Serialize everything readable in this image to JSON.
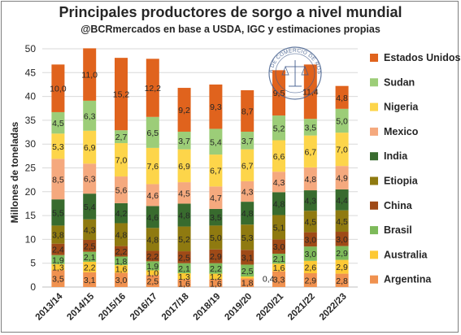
{
  "chart_data": {
    "type": "bar",
    "stacked": true,
    "title": "Principales productores de sorgo a nivel mundial",
    "subtitle": "@BCRmercados en base a USDA, IGC y estimaciones propias",
    "ylabel": "Millones de toneladas",
    "ylim": [
      0,
      50
    ],
    "yticks": [
      0,
      5,
      10,
      15,
      20,
      25,
      30,
      35,
      40,
      45,
      50
    ],
    "grid": "horizontal",
    "legend_position": "right",
    "categories": [
      "2013/14",
      "2014/15",
      "2015/16",
      "2016/17",
      "2017/18",
      "2018/19",
      "2019/20",
      "2020/21",
      "2021/22",
      "2022/23"
    ],
    "series": [
      {
        "name": "Argentina",
        "color": "#f0914f",
        "values": [
          3.5,
          3.1,
          3.0,
          2.5,
          1.6,
          1.6,
          1.8,
          3.3,
          2.9,
          2.8
        ],
        "labels": [
          "3,5",
          "3,1",
          "3,0",
          "2,5",
          "1,6",
          "1,6",
          "1,8",
          "3,3",
          "2,9",
          "2,8"
        ]
      },
      {
        "name": "Australia",
        "color": "#fdc934",
        "values": [
          1.3,
          2.2,
          1.6,
          1.0,
          1.3,
          1.2,
          0.4,
          1.6,
          2.6,
          2.9
        ],
        "labels": [
          "1,3",
          "2,2",
          "1,6",
          "1,0",
          "1,3",
          "1,2",
          "0,4",
          "1,6",
          "2,6",
          "2,9"
        ]
      },
      {
        "name": "Brasil",
        "color": "#7dba5a",
        "values": [
          1.9,
          2.1,
          1.8,
          1.9,
          2.1,
          2.2,
          2.5,
          2.1,
          3.0,
          2.9
        ],
        "labels": [
          "1,9",
          "2,1",
          "1,8",
          "1,9",
          "2,1",
          "2,2",
          "2,5",
          "2,1",
          "3,0",
          "2,9"
        ]
      },
      {
        "name": "China",
        "color": "#9f4a17",
        "values": [
          2.4,
          2.5,
          2.2,
          2.2,
          2.5,
          2.9,
          3.1,
          3.0,
          3.0,
          3.0
        ],
        "labels": [
          "2,4",
          "2,5",
          "2,2",
          "2,2",
          "2,5",
          "2,9",
          "3,1",
          "3,0",
          "3,0",
          "3,0"
        ]
      },
      {
        "name": "Etiopia",
        "color": "#8f7a10",
        "values": [
          3.8,
          4.3,
          4.8,
          4.8,
          5.2,
          5.0,
          5.3,
          5.1,
          4.5,
          4.5
        ],
        "labels": [
          "3,8",
          "4,3",
          "4,8",
          "4,8",
          "5,2",
          "5,0",
          "5,3",
          "5,1",
          "4,5",
          "4,5"
        ]
      },
      {
        "name": "India",
        "color": "#386b2e",
        "values": [
          5.5,
          5.4,
          4.2,
          4.6,
          4.8,
          3.5,
          4.8,
          4.8,
          4.3,
          4.4
        ],
        "labels": [
          "5,5",
          "5,4",
          "4,2",
          "4,6",
          "4,8",
          "3,5",
          "4,8",
          "4,8",
          "4,3",
          "4,4"
        ]
      },
      {
        "name": "Mexico",
        "color": "#f5a97e",
        "values": [
          8.5,
          6.3,
          5.6,
          4.6,
          4.5,
          4.7,
          4.3,
          4.3,
          4.8,
          4.9
        ],
        "labels": [
          "8,5",
          "6,3",
          "5,6",
          "4,6",
          "4,5",
          "4,7",
          "4,3",
          "4,3",
          "4,8",
          "4,9"
        ]
      },
      {
        "name": "Nigeria",
        "color": "#fdd54a",
        "values": [
          5.3,
          6.9,
          7.0,
          7.6,
          6.9,
          6.7,
          6.7,
          6.6,
          6.7,
          7.0
        ],
        "labels": [
          "5,3",
          "6,9",
          "7,0",
          "7,6",
          "6,9",
          "6,7",
          "6,7",
          "6,6",
          "6,7",
          "7,0"
        ]
      },
      {
        "name": "Sudan",
        "color": "#9ccd78",
        "values": [
          4.5,
          6.3,
          2.7,
          6.5,
          3.7,
          5.4,
          3.7,
          5.2,
          3.5,
          5.0
        ],
        "labels": [
          "4,5",
          "6,3",
          "2,7",
          "6,5",
          "3,7",
          "5,4",
          "3,7",
          "5,2",
          "3,5",
          "5,0"
        ]
      },
      {
        "name": "Estados Unidos",
        "color": "#e0631d",
        "values": [
          10.0,
          11.0,
          15.2,
          12.2,
          9.2,
          9.3,
          8.7,
          9.5,
          11.4,
          4.8
        ],
        "labels": [
          "10,0",
          "11,0",
          "15,2",
          "12,2",
          "9,2",
          "9,3",
          "8,7",
          "9,5",
          "11,4",
          "4,8"
        ]
      }
    ],
    "legend_order": [
      "Estados Unidos",
      "Sudan",
      "Nigeria",
      "Mexico",
      "India",
      "Etiopia",
      "China",
      "Brasil",
      "Australia",
      "Argentina"
    ]
  },
  "seal": {
    "text": "BOLSA DE COMERCIO DE ROSARIO",
    "color": "#3e5a8a"
  }
}
